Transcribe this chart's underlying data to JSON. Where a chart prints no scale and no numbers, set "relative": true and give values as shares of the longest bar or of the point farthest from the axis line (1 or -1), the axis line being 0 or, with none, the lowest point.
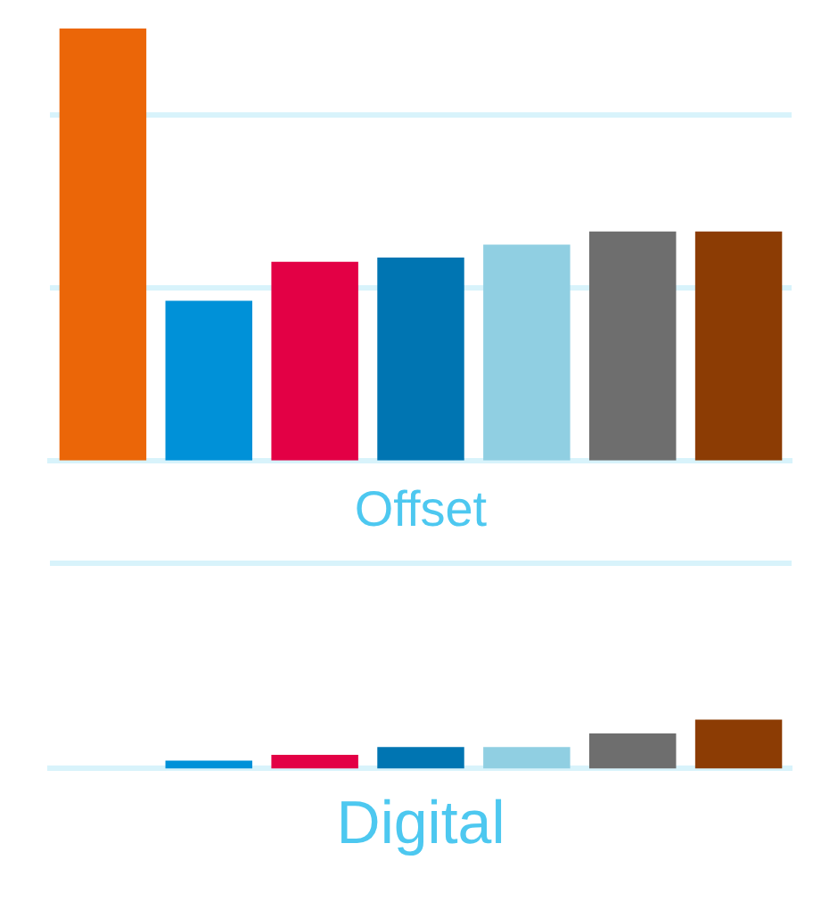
{
  "chart_data": [
    {
      "type": "bar",
      "relative": true,
      "xlabel": "Offset",
      "categories": [
        null,
        null,
        null,
        null,
        null,
        null,
        null
      ],
      "values": [
        1,
        0.37,
        0.46,
        0.47,
        0.5,
        0.53,
        0.53
      ],
      "colors": [
        "#eb6608",
        "#0091d8",
        "#e30045",
        "#0075b2",
        "#90cfe2",
        "#6e6e6e",
        "#8c3c04"
      ],
      "ref_lines": [
        {
          "axis": "y",
          "value": 0.4,
          "color": "#d8f3fb"
        },
        {
          "axis": "y",
          "value": 0.8,
          "color": "#d8f3fb"
        }
      ]
    },
    {
      "type": "bar",
      "relative": true,
      "xlabel": "Digital",
      "categories": [
        null,
        null,
        null,
        null,
        null,
        null,
        null
      ],
      "values": [
        0,
        0.16,
        0.28,
        0.44,
        0.44,
        0.72,
        1
      ],
      "colors": [
        "#eb6608",
        "#0091d8",
        "#e30045",
        "#0075b2",
        "#90cfe2",
        "#6e6e6e",
        "#8c3c04"
      ],
      "ref_lines": [
        {
          "axis": "y",
          "value": 4.2,
          "color": "#d8f3fb"
        }
      ]
    }
  ]
}
